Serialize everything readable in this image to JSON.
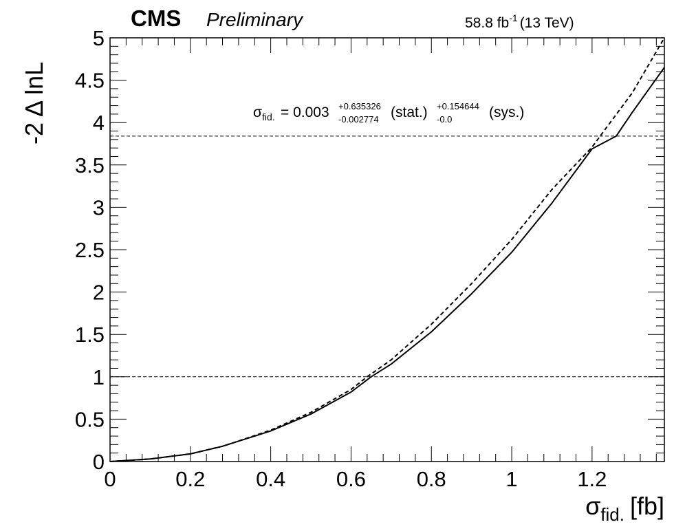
{
  "header": {
    "experiment": "CMS",
    "status": "Preliminary",
    "lumi_value": "58.8 fb",
    "lumi_exp": "-1",
    "energy": "(13 TeV)"
  },
  "annotation": {
    "sigma": "σ",
    "sub": "fid.",
    "central": "= 0.003",
    "stat_up": "+0.635326",
    "stat_down": "-0.002774",
    "stat_label": "(stat.)",
    "sys_up": "+0.154644",
    "sys_down": "-0.0",
    "sys_label": "(sys.)"
  },
  "axes": {
    "x_sigma": "σ",
    "x_sub": "fid.",
    "x_unit": "[fb]",
    "y_label": "-2 Δ lnL"
  },
  "chart_data": {
    "type": "line",
    "xlim": [
      0,
      1.38
    ],
    "ylim": [
      0,
      5
    ],
    "x_ticks": [
      0,
      0.2,
      0.4,
      0.6,
      0.8,
      1,
      1.2
    ],
    "x_tick_labels": [
      "0",
      "0.2",
      "0.4",
      "0.6",
      "0.8",
      "1",
      "1.2"
    ],
    "y_ticks": [
      0,
      0.5,
      1,
      1.5,
      2,
      2.5,
      3,
      3.5,
      4,
      4.5,
      5
    ],
    "y_tick_labels": [
      "0",
      "0.5",
      "1",
      "1.5",
      "2",
      "2.5",
      "3",
      "3.5",
      "4",
      "4.5",
      "5"
    ],
    "reference_lines": [
      1,
      3.84
    ],
    "series": [
      {
        "style": "solid",
        "x": [
          0,
          0.1,
          0.2,
          0.28,
          0.3,
          0.4,
          0.5,
          0.6,
          0.65,
          0.7,
          0.8,
          0.9,
          1.0,
          1.1,
          1.2,
          1.26,
          1.3,
          1.38
        ],
        "y": [
          0,
          0.03,
          0.09,
          0.18,
          0.21,
          0.36,
          0.56,
          0.82,
          1.0,
          1.15,
          1.53,
          1.98,
          2.47,
          3.05,
          3.69,
          3.84,
          4.12,
          4.65
        ]
      },
      {
        "style": "dashed",
        "x": [
          0,
          0.1,
          0.2,
          0.28,
          0.3,
          0.4,
          0.5,
          0.6,
          0.64,
          0.7,
          0.8,
          0.9,
          1.0,
          1.1,
          1.2,
          1.22,
          1.3,
          1.38
        ],
        "y": [
          0,
          0.03,
          0.09,
          0.18,
          0.21,
          0.37,
          0.58,
          0.85,
          1.0,
          1.2,
          1.62,
          2.1,
          2.62,
          3.21,
          3.71,
          3.84,
          4.35,
          5.0
        ]
      }
    ]
  }
}
